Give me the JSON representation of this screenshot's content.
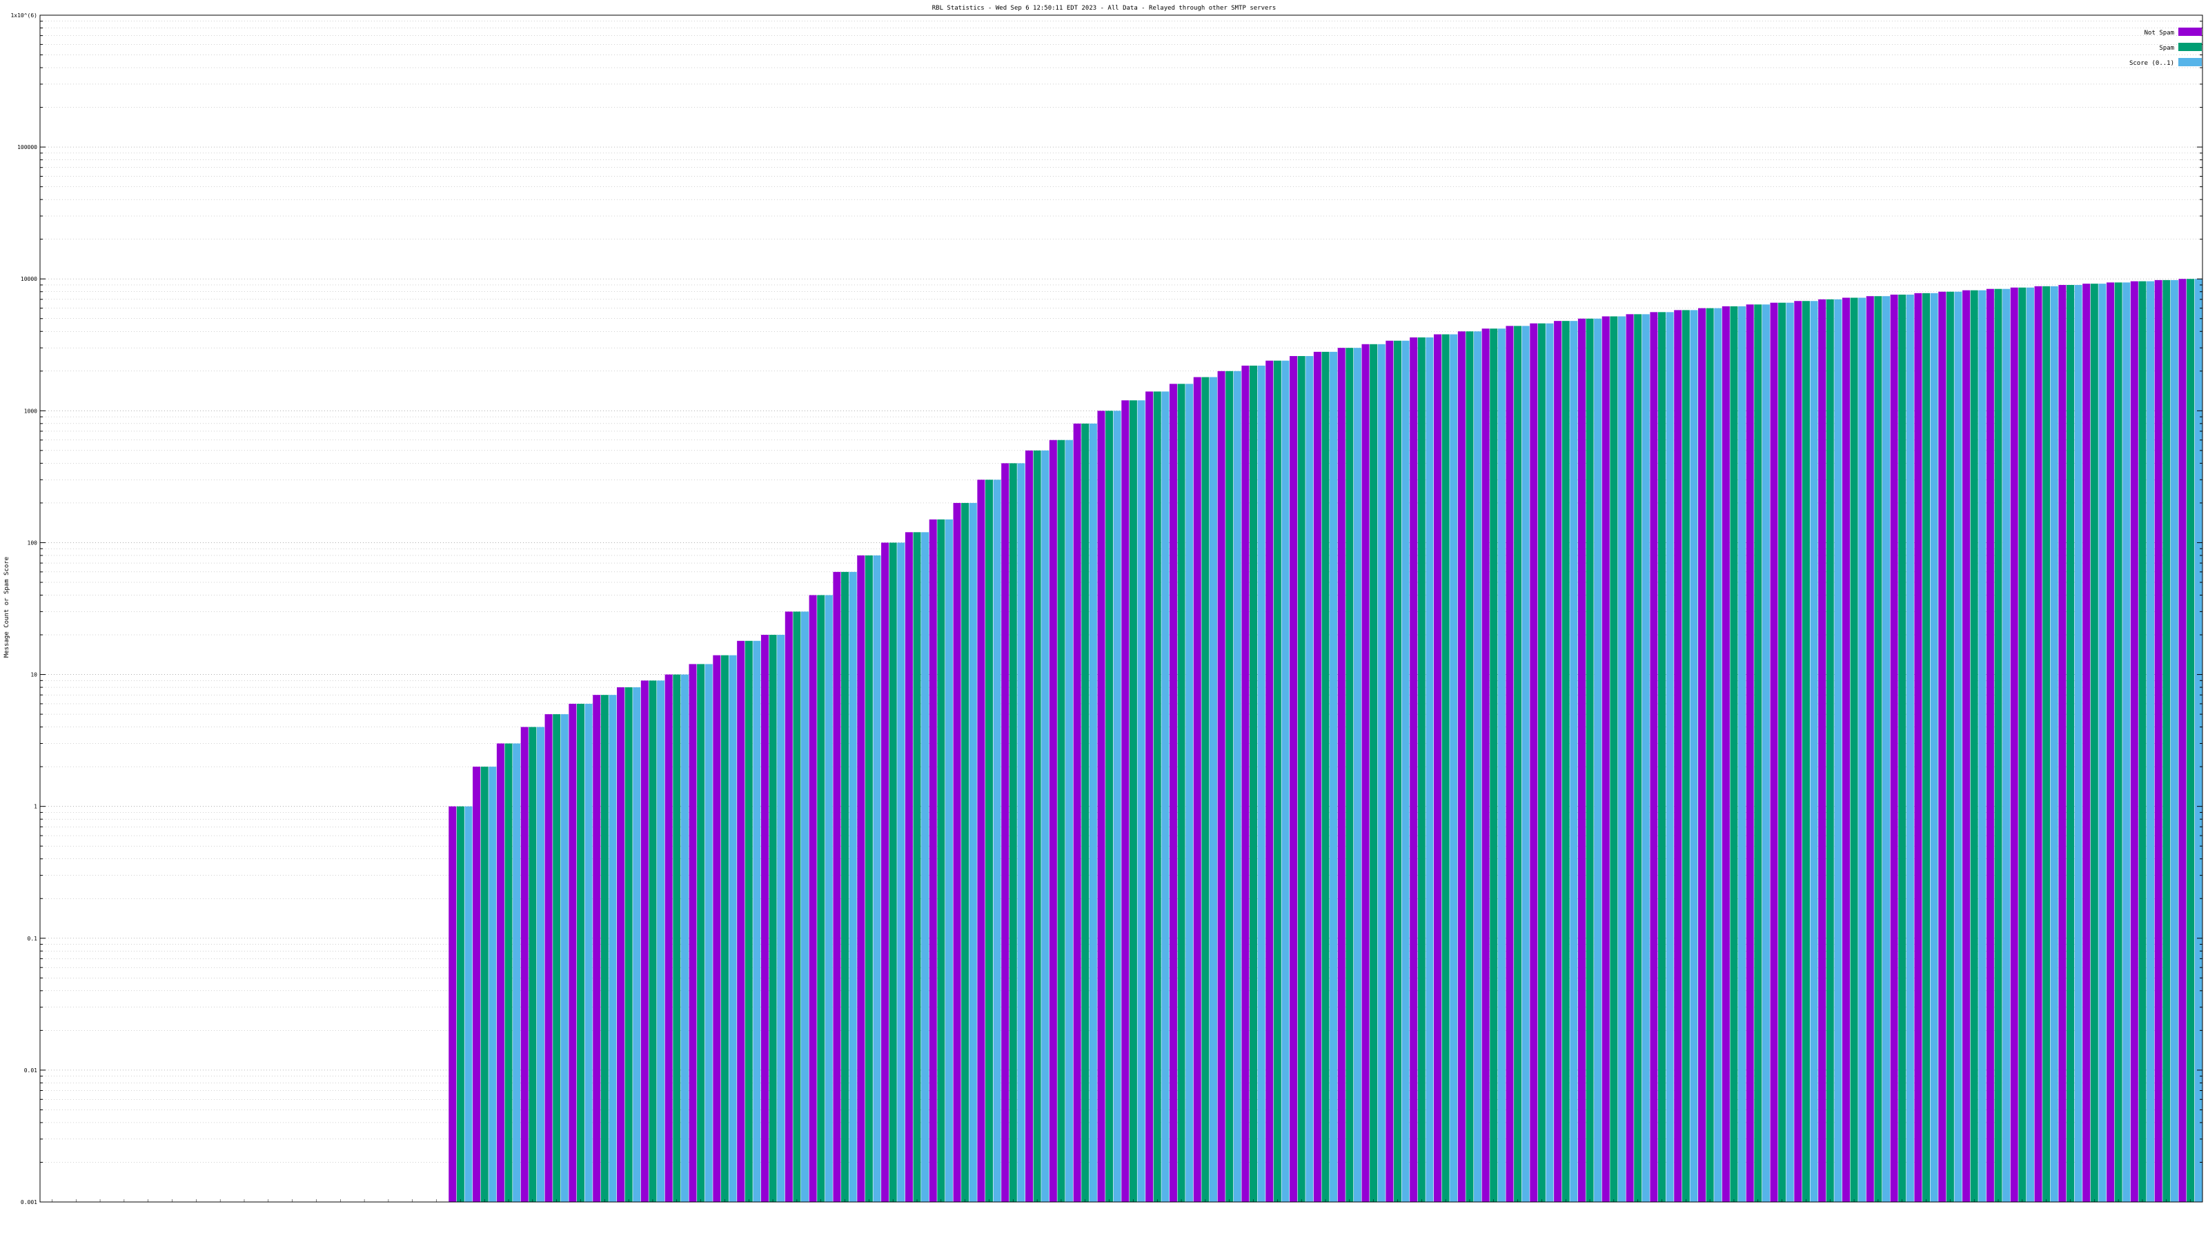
{
  "colors": {
    "not_spam": "#9400d3",
    "spam": "#009e73",
    "score": "#56b4e9",
    "grid": "#a0a0a0",
    "axis": "#000000"
  },
  "chart_data": {
    "type": "bar",
    "title": "RBL Statistics - Wed Sep  6 12:50:11 EDT 2023 - All Data - Relayed through other SMTP servers",
    "ylabel": "Message Count or Spam Score",
    "y_scale": "log",
    "ylim": [
      0.001,
      1000000
    ],
    "ytick_labels": [
      "0.001",
      "0.01",
      "0.1",
      "1",
      "10",
      "100",
      "1000",
      "10000",
      "100000",
      "1x10^(6)"
    ],
    "grid": true,
    "legend_position": "top-right",
    "x_tick_labels_legible": false,
    "series": [
      {
        "name": "Not Spam",
        "key": "not_spam",
        "values": [
          0,
          0,
          0,
          0,
          0,
          0,
          0,
          0,
          0,
          0,
          0,
          0,
          0,
          0,
          0,
          0,
          0,
          1,
          2,
          3,
          4,
          5,
          6,
          7,
          8,
          9,
          10,
          12,
          14,
          18,
          20,
          30,
          40,
          60,
          80,
          100,
          120,
          150,
          200,
          300,
          400,
          500,
          600,
          800,
          1000,
          1200,
          1400,
          1600,
          1800,
          2000,
          2200,
          2400,
          2600,
          2800,
          3000,
          3200,
          3400,
          3600,
          3800,
          4000,
          4200,
          4400,
          4600,
          4800,
          5000,
          5200,
          5400,
          5600,
          5800,
          6000,
          6200,
          6400,
          6600,
          6800,
          7000,
          7200,
          7400,
          7600,
          7800,
          8000,
          8200,
          8400,
          8600,
          8800,
          9000,
          9200,
          9400,
          9600,
          9800,
          10000
        ]
      },
      {
        "name": "Spam",
        "key": "spam",
        "values": [
          0,
          0,
          0,
          0,
          0,
          0,
          0,
          0,
          0,
          0,
          0,
          0,
          0,
          0,
          0,
          0,
          0,
          1,
          2,
          3,
          4,
          5,
          6,
          7,
          8,
          9,
          10,
          12,
          14,
          18,
          20,
          30,
          40,
          60,
          80,
          100,
          120,
          150,
          200,
          300,
          400,
          500,
          600,
          800,
          1000,
          1200,
          1400,
          1600,
          1800,
          2000,
          2200,
          2400,
          2600,
          2800,
          3000,
          3200,
          3400,
          3600,
          3800,
          4000,
          4200,
          4400,
          4600,
          4800,
          5000,
          5200,
          5400,
          5600,
          5800,
          6000,
          6200,
          6400,
          6600,
          6800,
          7000,
          7200,
          7400,
          7600,
          7800,
          8000,
          8200,
          8400,
          8600,
          8800,
          9000,
          9200,
          9400,
          9600,
          9800,
          10000
        ]
      },
      {
        "name": "Score (0..1)",
        "key": "score",
        "values": [
          0,
          0,
          0,
          0,
          0,
          0,
          0,
          0,
          0,
          0,
          0,
          0,
          0,
          0,
          0,
          0,
          0,
          1,
          2,
          3,
          4,
          5,
          6,
          7,
          8,
          9,
          10,
          12,
          14,
          18,
          20,
          30,
          40,
          60,
          80,
          100,
          120,
          150,
          200,
          300,
          400,
          500,
          600,
          800,
          1000,
          1200,
          1400,
          1600,
          1800,
          2000,
          2200,
          2400,
          2600,
          2800,
          3000,
          3200,
          3400,
          3600,
          3800,
          4000,
          4200,
          4400,
          4600,
          4800,
          5000,
          5200,
          5400,
          5600,
          5800,
          6000,
          6200,
          6400,
          6600,
          6800,
          7000,
          7200,
          7400,
          7600,
          7800,
          8000,
          8200,
          8400,
          8600,
          8800,
          9000,
          9200,
          9400,
          9600,
          9800,
          10000
        ]
      }
    ]
  }
}
